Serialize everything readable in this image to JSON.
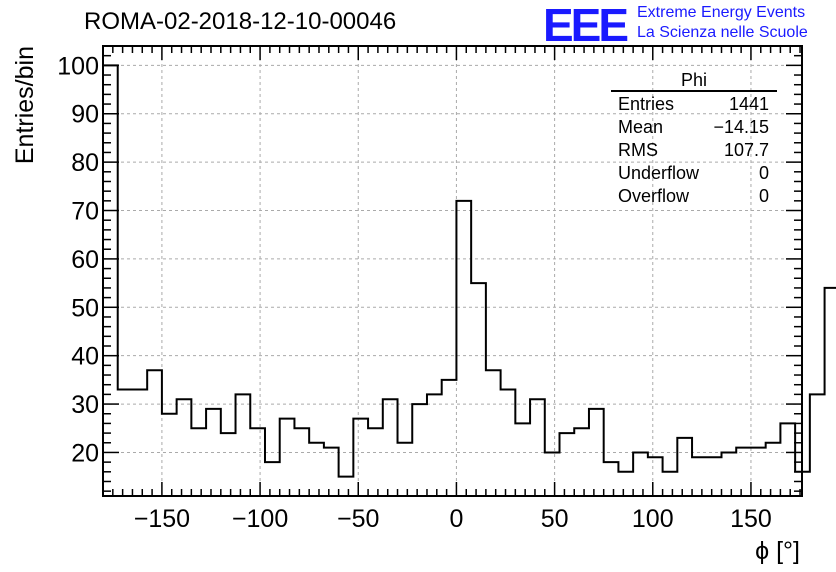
{
  "header": {
    "run_title": "ROMA-02-2018-12-10-00046",
    "logo_text": "EEE",
    "logo_line1": "Extreme Energy Events",
    "logo_line2": "La Scienza nelle Scuole",
    "logo_color": "#1a1aff"
  },
  "chart_data": {
    "type": "bar",
    "title": "",
    "xlabel": "ϕ [°]",
    "ylabel": "Entries/bin",
    "xlim": [
      -180,
      176
    ],
    "ylim": [
      11,
      104
    ],
    "grid": true,
    "x_ticks": [
      -150,
      -100,
      -50,
      0,
      50,
      100,
      150
    ],
    "y_ticks": [
      20,
      30,
      40,
      50,
      60,
      70,
      80,
      90,
      100
    ],
    "bin_width": 7.5,
    "first_bin_low": -180,
    "values": [
      100,
      33,
      33,
      37,
      28,
      31,
      25,
      29,
      24,
      32,
      25,
      18,
      27,
      25,
      22,
      21,
      15,
      27,
      25,
      31,
      22,
      30,
      32,
      35,
      72,
      55,
      37,
      33,
      26,
      31,
      20,
      24,
      25,
      29,
      18,
      16,
      20,
      19,
      16,
      23,
      19,
      19,
      20,
      21,
      21,
      22,
      26,
      16,
      32,
      54
    ],
    "stats_box": {
      "name": "Phi",
      "rows": [
        {
          "label": "Entries",
          "value": "1441"
        },
        {
          "label": "Mean",
          "value": "−14.15"
        },
        {
          "label": "RMS",
          "value": "107.7"
        },
        {
          "label": "Underflow",
          "value": "0"
        },
        {
          "label": "Overflow",
          "value": "0"
        }
      ]
    },
    "line_color": "#000000",
    "grid_color": "#aaaaaa"
  }
}
